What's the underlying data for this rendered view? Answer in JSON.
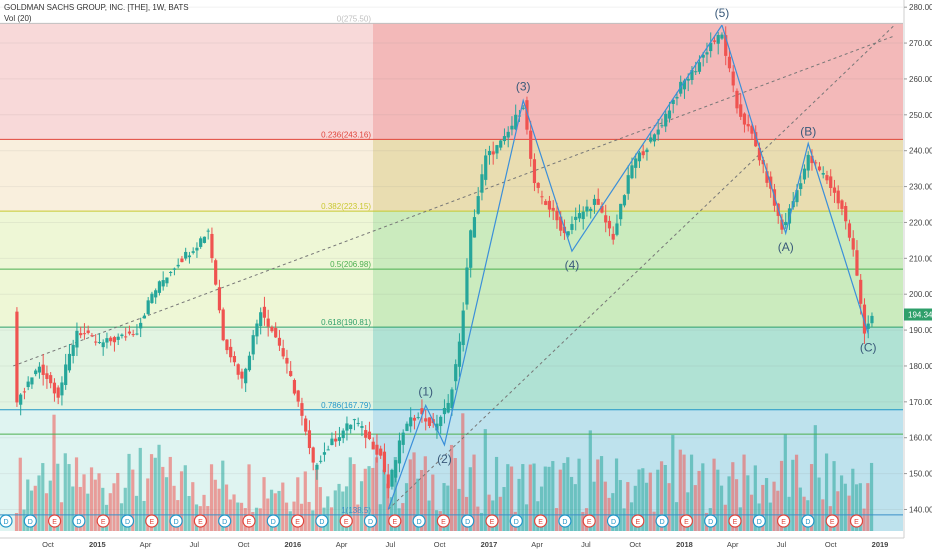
{
  "header": {
    "symbol_line": "GOLDMAN SACHS GROUP, INC. [THE], 1W, BATS",
    "indicator_line": "Vol (20)"
  },
  "last_price_label": "194.34",
  "colors": {
    "up": "#26a69a",
    "down": "#ef5350",
    "wave_line": "#3b8fd9",
    "fib_0": "#c0c0c0",
    "fib_236": "#e0443b",
    "fib_382": "#c8c830",
    "fib_5": "#4caf50",
    "fib_618": "#2e9f6a",
    "fib_786": "#2196c8",
    "earnings_badge": "#e0443b",
    "dividend_badge": "#2196c8"
  },
  "chart_data": {
    "type": "candlestick",
    "title": "GOLDMAN SACHS GROUP, INC. [THE], 1W, BATS",
    "indicator": "Vol (20)",
    "y_axis": {
      "range": [
        134,
        282
      ],
      "ticks": [
        "140.00",
        "150.00",
        "160.00",
        "170.00",
        "180.00",
        "190.00",
        "200.00",
        "210.00",
        "220.00",
        "230.00",
        "240.00",
        "250.00",
        "260.00",
        "270.00",
        "280.00"
      ],
      "last_price": 194.34
    },
    "x_axis": {
      "ticks": [
        "Oct",
        "2015",
        "Apr",
        "Jul",
        "Oct",
        "2016",
        "Apr",
        "Jul",
        "Oct",
        "2017",
        "Apr",
        "Jul",
        "Oct",
        "2018",
        "Apr",
        "Jul",
        "Oct",
        "2019"
      ],
      "tick_dates": [
        "2014-10-01",
        "2015-01-01",
        "2015-04-01",
        "2015-07-01",
        "2015-10-01",
        "2016-01-01",
        "2016-04-01",
        "2016-07-01",
        "2016-10-01",
        "2017-01-01",
        "2017-04-01",
        "2017-07-01",
        "2017-10-01",
        "2018-01-01",
        "2018-04-01",
        "2018-07-01",
        "2018-10-01",
        "2019-01-01"
      ]
    },
    "fibonacci": [
      {
        "label": "0(275.50)",
        "value": 275.5
      },
      {
        "label": "0.236(243.16)",
        "value": 243.16
      },
      {
        "label": "0.382(223.15)",
        "value": 223.15
      },
      {
        "label": "0.5(206.98)",
        "value": 206.98
      },
      {
        "label": "0.618(190.81)",
        "value": 190.81
      },
      {
        "label": "0.786(167.79)",
        "value": 167.79
      },
      {
        "label": "1(138.5)",
        "value": 138.5
      }
    ],
    "price_path": [
      [
        "2014-08-04",
        170
      ],
      [
        "2014-09-15",
        180
      ],
      [
        "2014-10-20",
        172
      ],
      [
        "2014-11-24",
        190
      ],
      [
        "2015-01-05",
        186
      ],
      [
        "2015-02-16",
        188
      ],
      [
        "2015-03-16",
        190
      ],
      [
        "2015-04-13",
        200
      ],
      [
        "2015-05-25",
        208
      ],
      [
        "2015-07-06",
        214
      ],
      [
        "2015-07-27",
        218
      ],
      [
        "2015-08-24",
        188
      ],
      [
        "2015-09-28",
        176
      ],
      [
        "2015-11-02",
        196
      ],
      [
        "2015-12-07",
        186
      ],
      [
        "2016-01-11",
        170
      ],
      [
        "2016-02-08",
        152
      ],
      [
        "2016-03-21",
        160
      ],
      [
        "2016-04-25",
        165
      ],
      [
        "2016-06-13",
        155
      ],
      [
        "2016-06-27",
        146
      ],
      [
        "2016-07-25",
        162
      ],
      [
        "2016-08-22",
        167
      ],
      [
        "2016-09-19",
        163
      ],
      [
        "2016-10-17",
        169
      ],
      [
        "2016-11-07",
        186
      ],
      [
        "2016-11-28",
        217
      ],
      [
        "2016-12-26",
        238
      ],
      [
        "2017-01-30",
        243
      ],
      [
        "2017-03-06",
        253
      ],
      [
        "2017-03-27",
        230
      ],
      [
        "2017-04-24",
        224
      ],
      [
        "2017-05-22",
        217
      ],
      [
        "2017-06-12",
        221
      ],
      [
        "2017-07-17",
        226
      ],
      [
        "2017-08-21",
        216
      ],
      [
        "2017-09-25",
        236
      ],
      [
        "2017-11-06",
        244
      ],
      [
        "2017-12-25",
        258
      ],
      [
        "2018-01-22",
        263
      ],
      [
        "2018-02-19",
        270
      ],
      [
        "2018-03-12",
        272
      ],
      [
        "2018-04-09",
        252
      ],
      [
        "2018-05-07",
        244
      ],
      [
        "2018-06-04",
        232
      ],
      [
        "2018-07-02",
        218
      ],
      [
        "2018-07-23",
        226
      ],
      [
        "2018-08-20",
        238
      ],
      [
        "2018-09-24",
        232
      ],
      [
        "2018-10-22",
        224
      ],
      [
        "2018-11-12",
        212
      ],
      [
        "2018-12-03",
        190
      ],
      [
        "2018-12-17",
        194.34
      ]
    ],
    "elliott_waves": [
      {
        "label": "(1)",
        "date": "2016-09-05",
        "value": 169
      },
      {
        "label": "(2)",
        "date": "2016-10-10",
        "value": 158
      },
      {
        "label": "(3)",
        "date": "2017-03-06",
        "value": 254
      },
      {
        "label": "(4)",
        "date": "2017-06-05",
        "value": 212
      },
      {
        "label": "(5)",
        "date": "2018-03-12",
        "value": 275
      },
      {
        "label": "(A)",
        "date": "2018-07-09",
        "value": 217
      },
      {
        "label": "(B)",
        "date": "2018-08-20",
        "value": 242
      },
      {
        "label": "(C)",
        "date": "2018-12-10",
        "value": 189
      }
    ],
    "trend_lines": [
      {
        "from": [
          "2014-07-28",
          180
        ],
        "to": [
          "2019-01-28",
          272
        ]
      },
      {
        "from": [
          "2016-06-27",
          140
        ],
        "to": [
          "2019-01-28",
          275
        ]
      }
    ],
    "event_badges": [
      "D",
      "D",
      "E",
      "D",
      "E",
      "D",
      "E",
      "D",
      "E",
      "D",
      "E",
      "D",
      "E",
      "D",
      "E",
      "D",
      "E",
      "D",
      "E",
      "D",
      "E",
      "D",
      "E",
      "D",
      "E",
      "D",
      "E",
      "D",
      "E",
      "D",
      "E",
      "D",
      "E",
      "D",
      "E",
      "E"
    ]
  }
}
